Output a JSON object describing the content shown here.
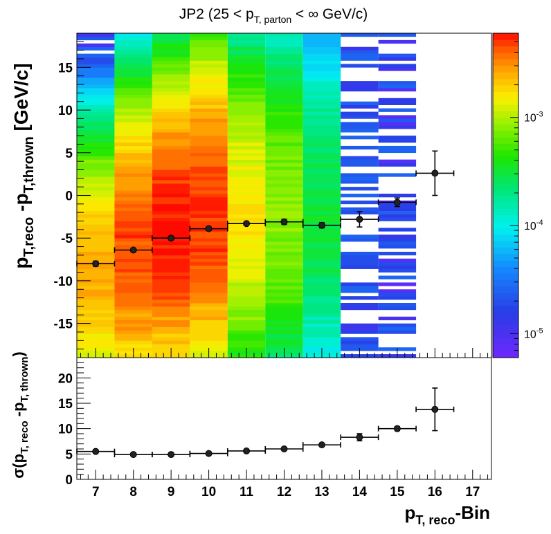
{
  "chart_data": [
    {
      "type": "heatmap",
      "title": "JP2 (25 < p_T, parton < ∞ GeV/c)",
      "title_parts": [
        "JP2 (25 < p",
        "T, parton",
        " < ∞ GeV/c)"
      ],
      "ylabel": "p_T,reco - p_T,thrown [GeV/c]",
      "ylabel_parts": [
        "p",
        "T,reco",
        " -p",
        "T,thrown",
        " [GeV/c]"
      ],
      "xlim": [
        6.5,
        17.5
      ],
      "ylim": [
        -19,
        19
      ],
      "x_ticks": [
        7,
        8,
        9,
        10,
        11,
        12,
        13,
        14,
        15,
        16,
        17
      ],
      "y_ticks": [
        15,
        10,
        5,
        0,
        -5,
        -10,
        -15
      ],
      "y_tick_labels": [
        "15",
        "10",
        "5",
        "0",
        "-5",
        "-10",
        "-15"
      ],
      "colorbar": {
        "scale": "log",
        "range": [
          6e-06,
          0.006
        ],
        "labels": [
          {
            "value": 0.001,
            "base": "10",
            "exp": "-3"
          },
          {
            "value": 0.0001,
            "base": "10",
            "exp": "-4"
          },
          {
            "value": 1e-05,
            "base": "10",
            "exp": "-5"
          }
        ]
      },
      "mean_points": [
        {
          "x": 7,
          "y": -8.0,
          "yerr": 0.3
        },
        {
          "x": 8,
          "y": -6.4,
          "yerr": 0.2
        },
        {
          "x": 9,
          "y": -5.0,
          "yerr": 0.2
        },
        {
          "x": 10,
          "y": -3.9,
          "yerr": 0.2
        },
        {
          "x": 11,
          "y": -3.3,
          "yerr": 0.2
        },
        {
          "x": 12,
          "y": -3.1,
          "yerr": 0.3
        },
        {
          "x": 13,
          "y": -3.5,
          "yerr": 0.3
        },
        {
          "x": 14,
          "y": -2.8,
          "yerr": 0.9
        },
        {
          "x": 15,
          "y": -0.8,
          "yerr": 0.5
        },
        {
          "x": 16,
          "y": 2.6,
          "yerr": 2.6
        }
      ],
      "column_density": [
        {
          "x": 7,
          "y": [
            -19,
            19
          ],
          "peak_y": -9,
          "peak": 0.0025,
          "spread": 8
        },
        {
          "x": 8,
          "y": [
            -19,
            19
          ],
          "peak_y": -6,
          "peak": 0.0045,
          "spread": 9
        },
        {
          "x": 9,
          "y": [
            -19,
            19
          ],
          "peak_y": -4,
          "peak": 0.006,
          "spread": 9
        },
        {
          "x": 10,
          "y": [
            -19,
            19
          ],
          "peak_y": -2,
          "peak": 0.005,
          "spread": 10
        },
        {
          "x": 11,
          "y": [
            -19,
            19
          ],
          "peak_y": -2,
          "peak": 0.0016,
          "spread": 10
        },
        {
          "x": 12,
          "y": [
            -19,
            19
          ],
          "peak_y": -2,
          "peak": 0.0008,
          "spread": 11
        },
        {
          "x": 13,
          "y": [
            -19,
            19
          ],
          "peak_y": -2,
          "peak": 0.0003,
          "spread": 11
        },
        {
          "x": 14,
          "y": [
            -19,
            19
          ],
          "peak_y": 0,
          "peak": 2.2e-05,
          "spread": 14
        },
        {
          "x": 15,
          "y": [
            -19,
            19
          ],
          "peak_y": 0,
          "peak": 8e-06,
          "spread": 20
        }
      ]
    },
    {
      "type": "scatter",
      "ylabel": "σ(p_T, reco - p_T, thrown)",
      "ylabel_parts": [
        "σ(p",
        "T, reco",
        " -p",
        "T, thrown",
        ")"
      ],
      "xlabel": "p_T, reco -Bin",
      "xlabel_parts": [
        "p",
        "T, reco",
        "-Bin"
      ],
      "xlim": [
        6.5,
        17.5
      ],
      "ylim": [
        0,
        24
      ],
      "x_ticks": [
        7,
        8,
        9,
        10,
        11,
        12,
        13,
        14,
        15,
        16,
        17
      ],
      "x_tick_labels": [
        "7",
        "8",
        "9",
        "10",
        "11",
        "12",
        "13",
        "14",
        "15",
        "16",
        "17"
      ],
      "y_ticks": [
        0,
        5,
        10,
        15,
        20
      ],
      "y_tick_labels": [
        "0",
        "5",
        "10",
        "15",
        "20"
      ],
      "points": [
        {
          "x": 7,
          "y": 5.5,
          "yerr": 0.3
        },
        {
          "x": 8,
          "y": 4.9,
          "yerr": 0.2
        },
        {
          "x": 9,
          "y": 4.9,
          "yerr": 0.2
        },
        {
          "x": 10,
          "y": 5.1,
          "yerr": 0.2
        },
        {
          "x": 11,
          "y": 5.6,
          "yerr": 0.2
        },
        {
          "x": 12,
          "y": 6.0,
          "yerr": 0.2
        },
        {
          "x": 13,
          "y": 6.8,
          "yerr": 0.2
        },
        {
          "x": 14,
          "y": 8.3,
          "yerr": 0.7
        },
        {
          "x": 15,
          "y": 10.0,
          "yerr": 0.4
        },
        {
          "x": 16,
          "y": 13.8,
          "yerr": 4.2
        }
      ]
    }
  ]
}
